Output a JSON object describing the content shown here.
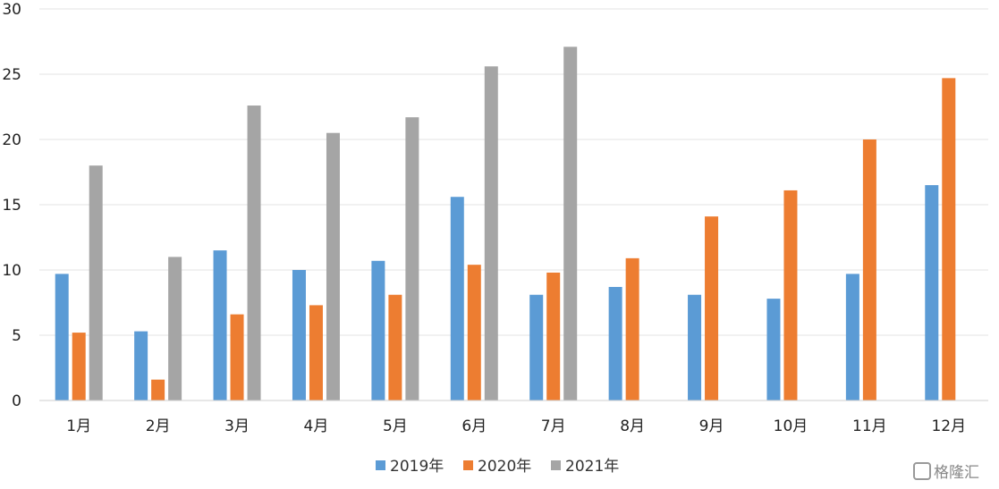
{
  "chart_data": {
    "type": "bar",
    "categories": [
      "1月",
      "2月",
      "3月",
      "4月",
      "5月",
      "6月",
      "7月",
      "8月",
      "9月",
      "10月",
      "11月",
      "12月"
    ],
    "series": [
      {
        "name": "2019年",
        "color": "#5b9bd5",
        "values": [
          9.7,
          5.3,
          11.5,
          10.0,
          10.7,
          15.6,
          8.1,
          8.7,
          8.1,
          7.8,
          9.7,
          16.5
        ]
      },
      {
        "name": "2020年",
        "color": "#ed7d31",
        "values": [
          5.2,
          1.6,
          6.6,
          7.3,
          8.1,
          10.4,
          9.8,
          10.9,
          14.1,
          16.1,
          20.0,
          24.7
        ]
      },
      {
        "name": "2021年",
        "color": "#a5a5a5",
        "values": [
          18.0,
          11.0,
          22.6,
          20.5,
          21.7,
          25.6,
          27.1,
          null,
          null,
          null,
          null,
          null
        ]
      }
    ],
    "yticks": [
      0,
      5,
      10,
      15,
      20,
      25,
      30
    ],
    "ylim": [
      0,
      30
    ],
    "grid": true,
    "legend": "bottom"
  },
  "watermark": {
    "text": "格隆汇",
    "icon": "g-logo-icon"
  }
}
